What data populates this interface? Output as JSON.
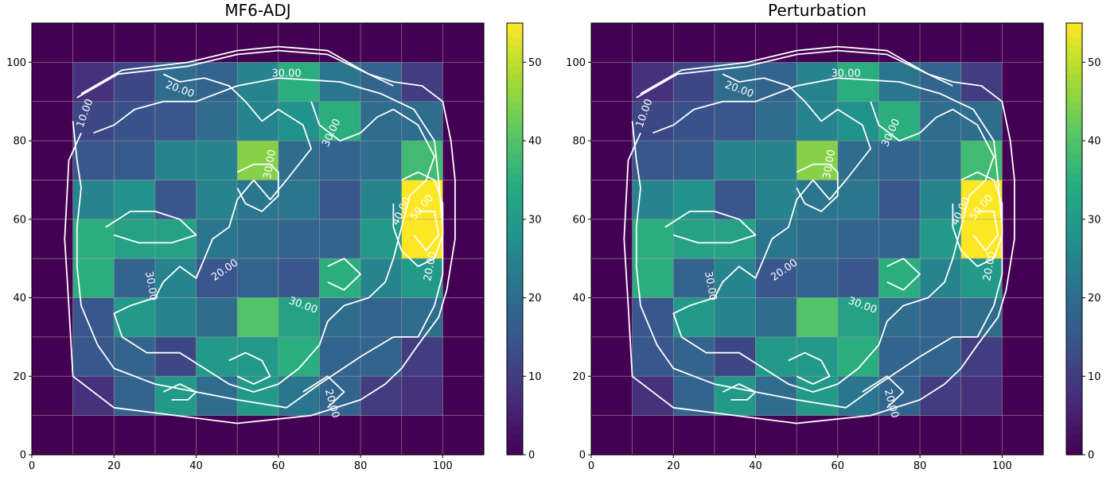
{
  "chart_data": [
    {
      "type": "heatmap",
      "title": "MF6-ADJ",
      "xlabel": "",
      "ylabel": "",
      "xlim": [
        0,
        110
      ],
      "ylim": [
        0,
        110
      ],
      "x_ticks": [
        0,
        20,
        40,
        60,
        80,
        100
      ],
      "y_ticks": [
        0,
        20,
        40,
        60,
        80,
        100
      ],
      "grid": true,
      "cell_size": 10,
      "colormap": "viridis",
      "color_range": [
        0,
        55
      ],
      "colorbar_ticks": [
        0,
        10,
        20,
        30,
        40,
        50
      ],
      "rows_top_to_bottom": [
        [
          0,
          0,
          0,
          0,
          0,
          0,
          0,
          0,
          0,
          0,
          0
        ],
        [
          0,
          8,
          12,
          20,
          18,
          25,
          35,
          22,
          18,
          10,
          0
        ],
        [
          0,
          12,
          14,
          15,
          20,
          25,
          28,
          35,
          20,
          20,
          0
        ],
        [
          0,
          15,
          16,
          25,
          25,
          45,
          20,
          18,
          20,
          38,
          0
        ],
        [
          0,
          25,
          28,
          15,
          25,
          22,
          22,
          15,
          25,
          55,
          0
        ],
        [
          0,
          35,
          32,
          32,
          22,
          20,
          18,
          18,
          30,
          55,
          0
        ],
        [
          0,
          35,
          18,
          25,
          15,
          18,
          15,
          35,
          25,
          30,
          0
        ],
        [
          0,
          15,
          30,
          25,
          20,
          40,
          32,
          20,
          18,
          20,
          0
        ],
        [
          0,
          15,
          18,
          12,
          30,
          30,
          35,
          18,
          18,
          10,
          0
        ],
        [
          0,
          8,
          18,
          30,
          20,
          30,
          22,
          18,
          10,
          8,
          0
        ],
        [
          0,
          0,
          0,
          0,
          0,
          0,
          0,
          0,
          0,
          0,
          0
        ]
      ],
      "contour_labels": [
        "10.00",
        "20.00",
        "20.00",
        "20.00",
        "20.00",
        "30.00",
        "30.00",
        "30.00",
        "30.00",
        "30.00",
        "40.00",
        "50.00"
      ]
    },
    {
      "type": "heatmap",
      "title": "Perturbation",
      "xlabel": "",
      "ylabel": "",
      "xlim": [
        0,
        110
      ],
      "ylim": [
        0,
        110
      ],
      "x_ticks": [
        0,
        20,
        40,
        60,
        80,
        100
      ],
      "y_ticks": [
        0,
        20,
        40,
        60,
        80,
        100
      ],
      "grid": true,
      "cell_size": 10,
      "colormap": "viridis",
      "color_range": [
        0,
        55
      ],
      "colorbar_ticks": [
        0,
        10,
        20,
        30,
        40,
        50
      ],
      "rows_top_to_bottom": [
        [
          0,
          0,
          0,
          0,
          0,
          0,
          0,
          0,
          0,
          0,
          0
        ],
        [
          0,
          8,
          12,
          20,
          18,
          25,
          35,
          22,
          18,
          10,
          0
        ],
        [
          0,
          12,
          14,
          15,
          20,
          25,
          28,
          35,
          20,
          20,
          0
        ],
        [
          0,
          15,
          16,
          25,
          25,
          45,
          20,
          18,
          20,
          38,
          0
        ],
        [
          0,
          25,
          28,
          15,
          25,
          22,
          22,
          15,
          25,
          55,
          0
        ],
        [
          0,
          35,
          32,
          32,
          22,
          20,
          18,
          18,
          30,
          55,
          0
        ],
        [
          0,
          35,
          18,
          25,
          15,
          18,
          15,
          35,
          25,
          30,
          0
        ],
        [
          0,
          15,
          30,
          25,
          20,
          40,
          32,
          20,
          18,
          20,
          0
        ],
        [
          0,
          15,
          18,
          12,
          30,
          30,
          35,
          18,
          18,
          10,
          0
        ],
        [
          0,
          8,
          18,
          30,
          20,
          30,
          22,
          18,
          10,
          8,
          0
        ],
        [
          0,
          0,
          0,
          0,
          0,
          0,
          0,
          0,
          0,
          0,
          0
        ]
      ],
      "contour_labels": [
        "10.00",
        "20.00",
        "20.00",
        "20.00",
        "20.00",
        "30.00",
        "30.00",
        "30.00",
        "30.00",
        "30.00",
        "40.00",
        "50.00"
      ]
    }
  ]
}
